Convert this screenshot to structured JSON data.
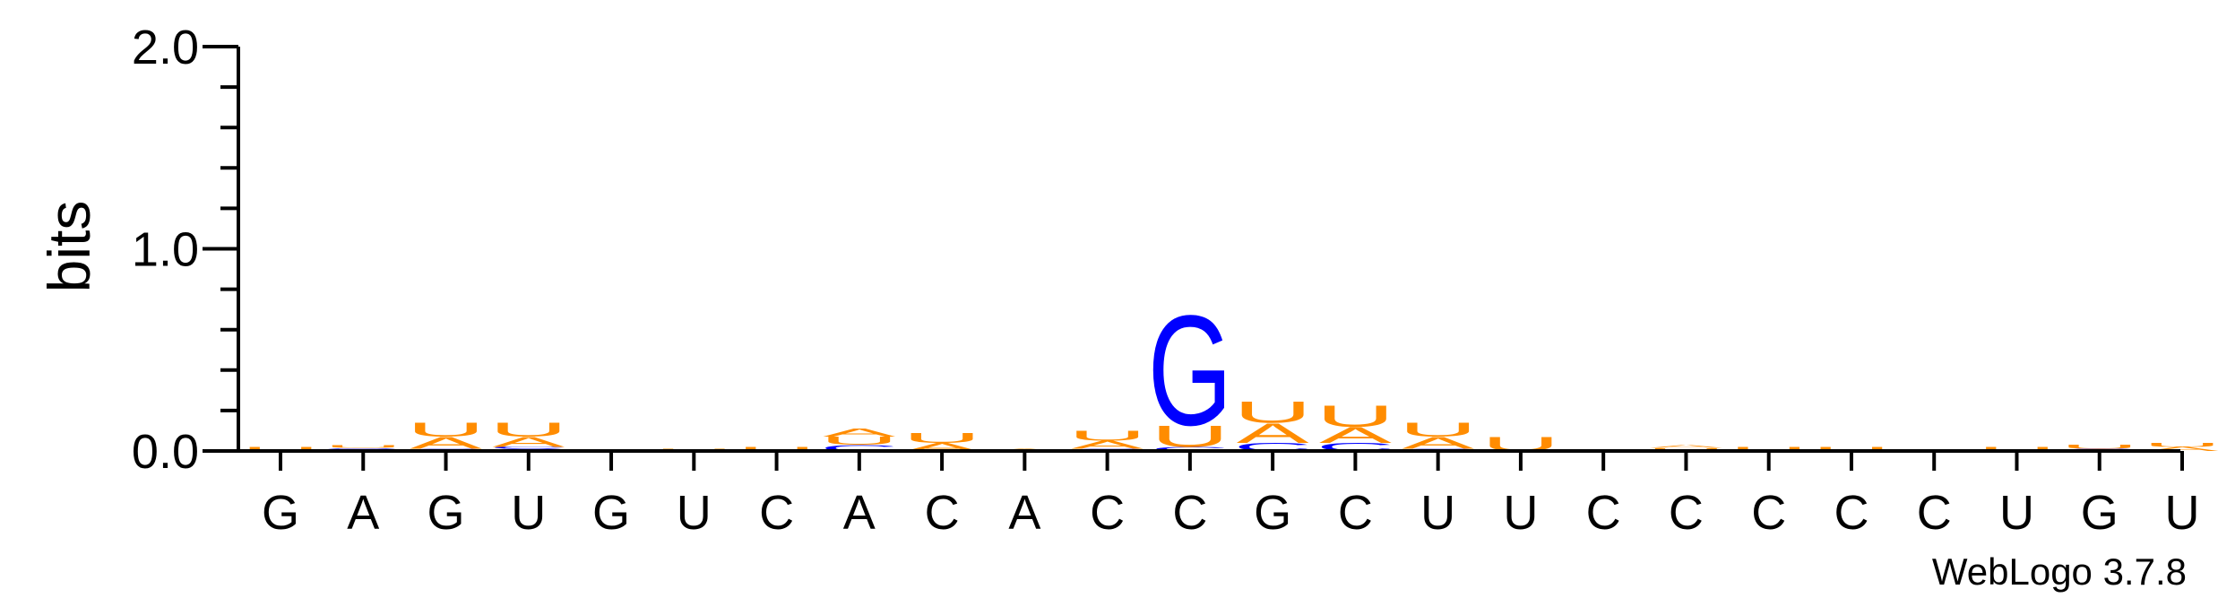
{
  "chart_data": {
    "type": "sequence-logo",
    "ylabel": "bits",
    "ylim": [
      0,
      2.0
    ],
    "yticks": [
      {
        "value": 0,
        "label": "0.0"
      },
      {
        "value": 1,
        "label": "1.0"
      },
      {
        "value": 2,
        "label": "2.0"
      }
    ],
    "y_minor_step": 0.2,
    "credit": "WebLogo 3.7.8",
    "colors": {
      "A": "#ff8c00",
      "U": "#ff8c00",
      "G": "#0000ff",
      "C": "#0000ff"
    },
    "positions": [
      {
        "label": "G",
        "stack": [
          {
            "letter": "U",
            "bits": 0.02
          }
        ]
      },
      {
        "label": "A",
        "stack": [
          {
            "letter": "G",
            "bits": 0.015
          },
          {
            "letter": "U",
            "bits": 0.015
          }
        ]
      },
      {
        "label": "G",
        "stack": [
          {
            "letter": "C",
            "bits": 0.01
          },
          {
            "letter": "A",
            "bits": 0.06
          },
          {
            "letter": "U",
            "bits": 0.07
          }
        ]
      },
      {
        "label": "U",
        "stack": [
          {
            "letter": "G",
            "bits": 0.01
          },
          {
            "letter": "C",
            "bits": 0.01
          },
          {
            "letter": "A",
            "bits": 0.05
          },
          {
            "letter": "U",
            "bits": 0.07
          }
        ]
      },
      {
        "label": "G",
        "stack": []
      },
      {
        "label": "U",
        "stack": [
          {
            "letter": "U",
            "bits": 0.01
          }
        ]
      },
      {
        "label": "C",
        "stack": [
          {
            "letter": "U",
            "bits": 0.02
          }
        ]
      },
      {
        "label": "A",
        "stack": [
          {
            "letter": "C",
            "bits": 0.03
          },
          {
            "letter": "U",
            "bits": 0.04
          },
          {
            "letter": "A",
            "bits": 0.04
          }
        ]
      },
      {
        "label": "C",
        "stack": [
          {
            "letter": "A",
            "bits": 0.04
          },
          {
            "letter": "U",
            "bits": 0.05
          }
        ]
      },
      {
        "label": "A",
        "stack": [
          {
            "letter": "A",
            "bits": 0.01
          }
        ]
      },
      {
        "label": "C",
        "stack": [
          {
            "letter": "C",
            "bits": 0.01
          },
          {
            "letter": "A",
            "bits": 0.04
          },
          {
            "letter": "U",
            "bits": 0.05
          }
        ]
      },
      {
        "label": "C",
        "stack": [
          {
            "letter": "C",
            "bits": 0.02
          },
          {
            "letter": "U",
            "bits": 0.11
          },
          {
            "letter": "G",
            "bits": 0.56
          }
        ]
      },
      {
        "label": "G",
        "stack": [
          {
            "letter": "C",
            "bits": 0.04
          },
          {
            "letter": "A",
            "bits": 0.1
          },
          {
            "letter": "U",
            "bits": 0.11
          }
        ]
      },
      {
        "label": "C",
        "stack": [
          {
            "letter": "C",
            "bits": 0.04
          },
          {
            "letter": "A",
            "bits": 0.08
          },
          {
            "letter": "U",
            "bits": 0.11
          }
        ]
      },
      {
        "label": "U",
        "stack": [
          {
            "letter": "C",
            "bits": 0.01
          },
          {
            "letter": "A",
            "bits": 0.06
          },
          {
            "letter": "U",
            "bits": 0.07
          }
        ]
      },
      {
        "label": "U",
        "stack": [
          {
            "letter": "U",
            "bits": 0.07
          }
        ]
      },
      {
        "label": "C",
        "stack": []
      },
      {
        "label": "C",
        "stack": [
          {
            "letter": "U",
            "bits": 0.015
          },
          {
            "letter": "A",
            "bits": 0.015
          }
        ]
      },
      {
        "label": "C",
        "stack": [
          {
            "letter": "U",
            "bits": 0.02
          }
        ]
      },
      {
        "label": "C",
        "stack": [
          {
            "letter": "U",
            "bits": 0.02
          }
        ]
      },
      {
        "label": "C",
        "stack": []
      },
      {
        "label": "U",
        "stack": [
          {
            "letter": "U",
            "bits": 0.02
          }
        ]
      },
      {
        "label": "G",
        "stack": [
          {
            "letter": "C",
            "bits": 0.01
          },
          {
            "letter": "U",
            "bits": 0.02
          }
        ]
      },
      {
        "label": "U",
        "stack": [
          {
            "letter": "A",
            "bits": 0.02
          },
          {
            "letter": "U",
            "bits": 0.02
          }
        ]
      }
    ]
  }
}
